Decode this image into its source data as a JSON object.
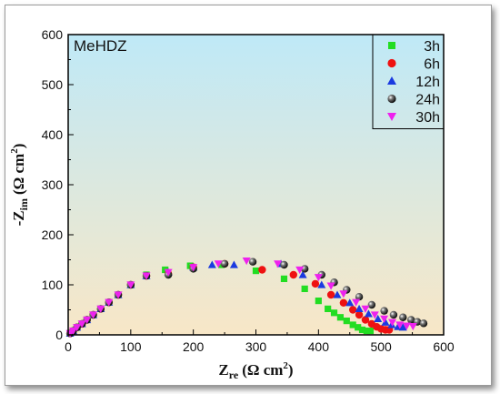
{
  "chart_data": {
    "type": "scatter",
    "annotation": "MeHDZ",
    "xlabel_main": "Z",
    "xlabel_sub": "re",
    "xlabel_unit": "(Ω cm",
    "xlabel_sup": "2",
    "xlabel_close": ")",
    "ylabel_prefix": "-Z",
    "ylabel_sub": "im",
    "ylabel_unit": "(Ω cm",
    "ylabel_sup": "2",
    "ylabel_close": ")",
    "xlim": [
      0,
      600
    ],
    "ylim": [
      0,
      600
    ],
    "xticks": [
      "0",
      "100",
      "200",
      "300",
      "400",
      "500",
      "600"
    ],
    "yticks": [
      "0",
      "100",
      "200",
      "300",
      "400",
      "500",
      "600"
    ],
    "legend_position": "top-right",
    "background": {
      "top": "#bfe9f7",
      "bottom": "#f8e7c7"
    },
    "series": [
      {
        "name": "3h",
        "color": "#22dd22",
        "marker": "square",
        "x": [
          3,
          8,
          14,
          22,
          30,
          40,
          52,
          65,
          80,
          100,
          125,
          155,
          195,
          245,
          300,
          345,
          378,
          400,
          415,
          425,
          435,
          445,
          455,
          463,
          470,
          477,
          483
        ],
        "y": [
          3,
          8,
          15,
          22,
          30,
          40,
          52,
          65,
          80,
          100,
          120,
          130,
          138,
          140,
          128,
          112,
          92,
          68,
          52,
          44,
          35,
          28,
          20,
          15,
          10,
          8,
          8
        ]
      },
      {
        "name": "6h",
        "color": "#ee1111",
        "marker": "circle",
        "x": [
          3,
          8,
          14,
          22,
          30,
          40,
          52,
          65,
          80,
          100,
          125,
          160,
          200,
          250,
          310,
          360,
          395,
          420,
          440,
          455,
          465,
          475,
          485,
          493,
          500,
          507,
          513
        ],
        "y": [
          3,
          8,
          15,
          22,
          30,
          40,
          52,
          65,
          80,
          100,
          118,
          122,
          135,
          142,
          130,
          120,
          102,
          80,
          64,
          50,
          40,
          30,
          22,
          16,
          12,
          10,
          10
        ]
      },
      {
        "name": "12h",
        "color": "#1a3ae0",
        "marker": "triangle-up",
        "x": [
          3,
          8,
          14,
          22,
          30,
          40,
          52,
          65,
          80,
          100,
          125,
          160,
          200,
          230,
          265,
          340,
          375,
          405,
          430,
          450,
          465,
          480,
          495,
          507,
          517,
          527,
          535
        ],
        "y": [
          3,
          8,
          15,
          22,
          30,
          40,
          52,
          65,
          80,
          100,
          118,
          125,
          135,
          140,
          140,
          142,
          120,
          100,
          80,
          64,
          52,
          42,
          32,
          25,
          20,
          16,
          15
        ]
      },
      {
        "name": "24h",
        "color": "#222222",
        "marker": "sphere",
        "x": [
          3,
          8,
          14,
          22,
          30,
          40,
          52,
          65,
          80,
          100,
          125,
          160,
          200,
          250,
          295,
          345,
          378,
          405,
          425,
          445,
          465,
          485,
          505,
          520,
          535,
          548,
          558,
          568
        ],
        "y": [
          3,
          8,
          15,
          22,
          30,
          40,
          52,
          65,
          80,
          100,
          118,
          120,
          132,
          142,
          146,
          140,
          132,
          120,
          105,
          90,
          76,
          60,
          48,
          40,
          35,
          30,
          26,
          23
        ]
      },
      {
        "name": "30h",
        "color": "#ee22ee",
        "marker": "triangle-down",
        "x": [
          3,
          8,
          14,
          22,
          30,
          40,
          52,
          65,
          80,
          100,
          125,
          160,
          200,
          240,
          285,
          335,
          370,
          400,
          420,
          440,
          460,
          475,
          490,
          505,
          518,
          530,
          541,
          551
        ],
        "y": [
          3,
          8,
          15,
          22,
          30,
          40,
          52,
          65,
          80,
          100,
          118,
          125,
          135,
          142,
          148,
          142,
          130,
          115,
          98,
          82,
          65,
          52,
          40,
          32,
          25,
          20,
          18,
          17
        ]
      }
    ]
  }
}
